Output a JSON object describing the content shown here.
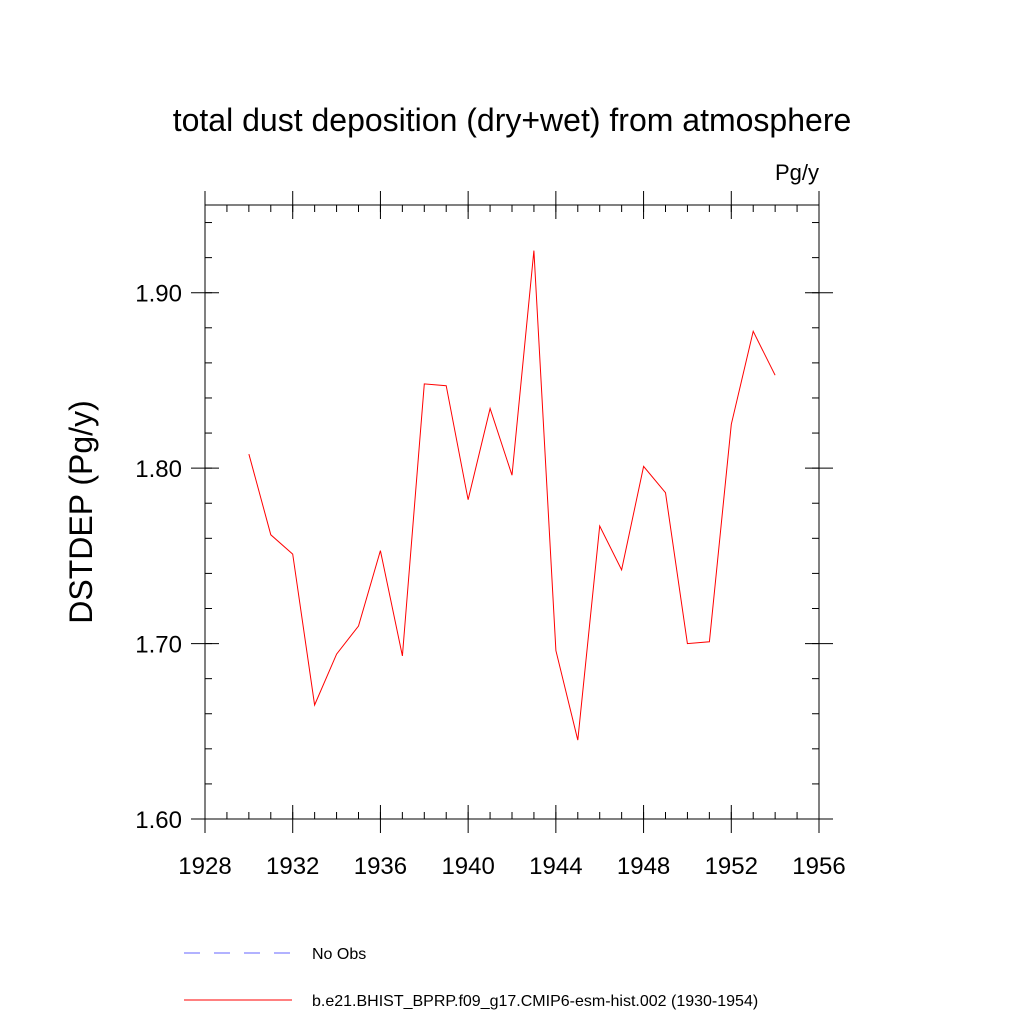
{
  "chart_data": {
    "type": "line",
    "title": "total dust deposition (dry+wet) from atmosphere",
    "units_label": "Pg/y",
    "ylabel": "DSTDEP  (Pg/y)",
    "xlabel": "",
    "xlim": [
      1928,
      1956
    ],
    "ylim": [
      1.6,
      1.95
    ],
    "x_major_ticks": [
      1928,
      1932,
      1936,
      1940,
      1944,
      1948,
      1952,
      1956
    ],
    "x_tick_labels": [
      "1928",
      "1932",
      "1936",
      "1940",
      "1944",
      "1948",
      "1952",
      "1956"
    ],
    "y_major_ticks": [
      1.6,
      1.7,
      1.8,
      1.9
    ],
    "y_tick_labels": [
      "1.60",
      "1.70",
      "1.80",
      "1.90"
    ],
    "y_minor_step": 0.02,
    "x_minor_step": 1,
    "grid": false,
    "legend_position": "bottom",
    "series": [
      {
        "name": "b.e21.BHIST_BPRP.f09_g17.CMIP6-esm-hist.002 (1930-1954)",
        "color": "#ff0000",
        "style": "solid",
        "x": [
          1930,
          1931,
          1932,
          1933,
          1934,
          1935,
          1936,
          1937,
          1938,
          1939,
          1940,
          1941,
          1942,
          1943,
          1944,
          1945,
          1946,
          1947,
          1948,
          1949,
          1950,
          1951,
          1952,
          1953,
          1954
        ],
        "values": [
          1.808,
          1.762,
          1.751,
          1.665,
          1.694,
          1.71,
          1.753,
          1.693,
          1.848,
          1.847,
          1.782,
          1.834,
          1.796,
          1.924,
          1.696,
          1.645,
          1.767,
          1.742,
          1.801,
          1.786,
          1.7,
          1.701,
          1.825,
          1.878,
          1.853
        ]
      }
    ],
    "legend": [
      {
        "label": "No Obs",
        "color": "#6666ff",
        "style": "dashed"
      },
      {
        "label": "b.e21.BHIST_BPRP.f09_g17.CMIP6-esm-hist.002 (1930-1954)",
        "color": "#ff0000",
        "style": "solid"
      }
    ]
  }
}
